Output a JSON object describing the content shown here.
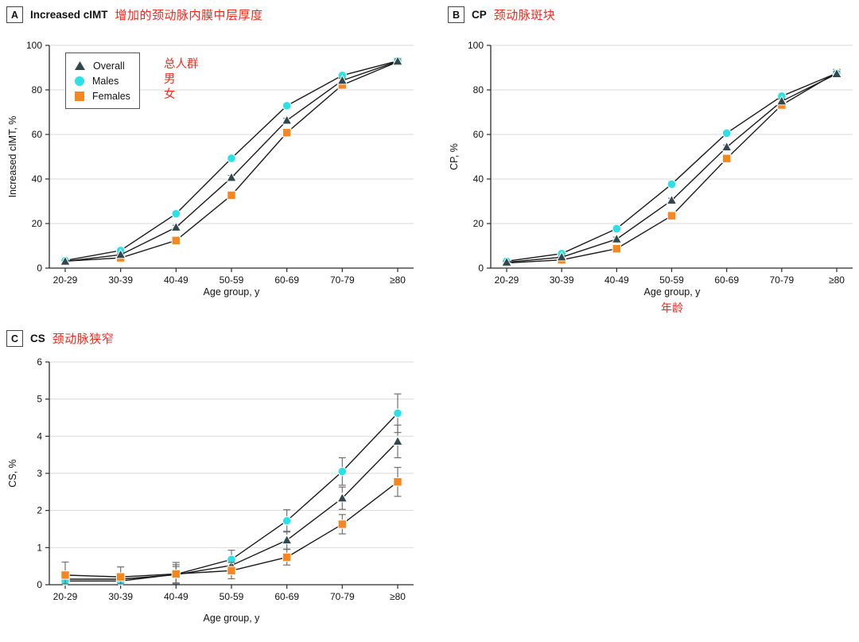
{
  "colors": {
    "overall": "#31494e",
    "males": "#2ce1e6",
    "females": "#f6861f",
    "annotation_red": "#f8271b",
    "grid": "#d9d9d9",
    "axis": "#2b2b2b",
    "line": "#1a1a1a",
    "error_bar": "#707070"
  },
  "legend": {
    "position": "top-left inside plot of panel A",
    "items": [
      {
        "label": "Overall",
        "label_zh": "总人群",
        "marker": "triangle"
      },
      {
        "label": "Males",
        "label_zh": "男",
        "marker": "circle"
      },
      {
        "label": "Females",
        "label_zh": "女",
        "marker": "square"
      }
    ]
  },
  "chart_data": [
    {
      "panel_letter": "A",
      "type": "line",
      "title": "Increased cIMT",
      "title_zh": "增加的颈动脉内膜中层厚度",
      "ylabel": "Increased cIMT, %",
      "xlabel": "Age group, y",
      "ylim": [
        0,
        100
      ],
      "yticks": [
        0,
        20,
        40,
        60,
        80,
        100
      ],
      "grid": "horizontal",
      "categories": [
        "20-29",
        "30-39",
        "40-49",
        "50-59",
        "60-69",
        "70-79",
        "≥80"
      ],
      "series": [
        {
          "name": "Overall",
          "marker": "triangle",
          "color": "#31494e",
          "values": [
            3.0,
            6.0,
            18.3,
            40.6,
            66.3,
            84.2,
            92.8
          ],
          "err": [
            0.4,
            0.5,
            0.9,
            1.0,
            1.0,
            1.0,
            1.1
          ]
        },
        {
          "name": "Males",
          "marker": "circle",
          "color": "#2ce1e6",
          "values": [
            3.4,
            7.9,
            24.4,
            49.3,
            72.9,
            86.5,
            93.0
          ],
          "err": [
            0.6,
            0.7,
            1.3,
            1.4,
            1.2,
            1.3,
            1.4
          ]
        },
        {
          "name": "Females",
          "marker": "square",
          "color": "#f6861f",
          "values": [
            3.1,
            4.6,
            12.4,
            32.7,
            60.8,
            82.2,
            92.6
          ],
          "err": [
            0.6,
            0.6,
            1.0,
            1.3,
            1.4,
            1.4,
            1.7
          ]
        }
      ]
    },
    {
      "panel_letter": "B",
      "type": "line",
      "title": "CP",
      "title_zh": "颈动脉斑块",
      "ylabel": "CP, %",
      "xlabel": "Age group, y",
      "xlabel_zh": "年龄",
      "ylim": [
        0,
        100
      ],
      "yticks": [
        0,
        20,
        40,
        60,
        80,
        100
      ],
      "grid": "horizontal",
      "categories": [
        "20-29",
        "30-39",
        "40-49",
        "50-59",
        "60-69",
        "70-79",
        "≥80"
      ],
      "series": [
        {
          "name": "Overall",
          "marker": "triangle",
          "color": "#31494e",
          "values": [
            2.6,
            4.9,
            13.0,
            30.4,
            54.3,
            74.9,
            87.2
          ],
          "err": [
            0.4,
            0.5,
            0.9,
            1.0,
            1.0,
            1.0,
            1.1
          ]
        },
        {
          "name": "Males",
          "marker": "circle",
          "color": "#2ce1e6",
          "values": [
            3.1,
            6.5,
            17.7,
            37.7,
            60.6,
            77.2,
            87.5
          ],
          "err": [
            0.5,
            0.7,
            1.3,
            1.4,
            1.2,
            1.3,
            1.5
          ]
        },
        {
          "name": "Females",
          "marker": "square",
          "color": "#f6861f",
          "values": [
            2.3,
            3.7,
            8.7,
            23.5,
            49.2,
            73.2,
            87.8
          ],
          "err": [
            0.5,
            0.6,
            0.9,
            1.3,
            1.4,
            1.4,
            1.8
          ]
        }
      ]
    },
    {
      "panel_letter": "C",
      "type": "line",
      "title": "CS",
      "title_zh": "颈动脉狭窄",
      "ylabel": "CS, %",
      "xlabel": "Age group, y",
      "ylim": [
        0,
        6
      ],
      "yticks": [
        0,
        1,
        2,
        3,
        4,
        5,
        6
      ],
      "grid": "horizontal",
      "categories": [
        "20-29",
        "30-39",
        "40-49",
        "50-59",
        "60-69",
        "70-79",
        "≥80"
      ],
      "series": [
        {
          "name": "Overall",
          "marker": "triangle",
          "color": "#31494e",
          "values": [
            0.15,
            0.15,
            0.27,
            0.52,
            1.2,
            2.33,
            3.86
          ],
          "err": [
            0.14,
            0.12,
            0.22,
            0.16,
            0.24,
            0.3,
            0.44
          ]
        },
        {
          "name": "Males",
          "marker": "circle",
          "color": "#2ce1e6",
          "values": [
            0.1,
            0.1,
            0.28,
            0.68,
            1.72,
            3.05,
            4.62
          ],
          "err": [
            0.12,
            0.12,
            0.26,
            0.25,
            0.3,
            0.37,
            0.52
          ]
        },
        {
          "name": "Females",
          "marker": "square",
          "color": "#f6861f",
          "values": [
            0.26,
            0.21,
            0.29,
            0.38,
            0.74,
            1.63,
            2.77
          ],
          "err": [
            0.35,
            0.27,
            0.31,
            0.22,
            0.21,
            0.26,
            0.39
          ]
        }
      ]
    }
  ]
}
